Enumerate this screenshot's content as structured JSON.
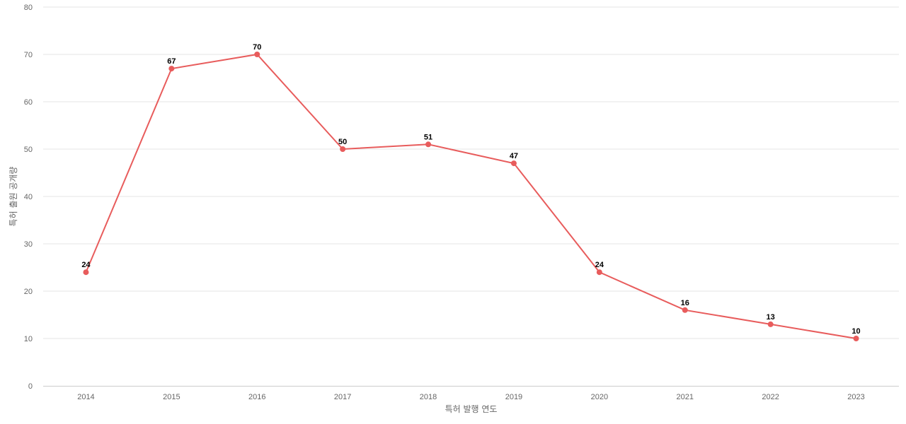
{
  "chart_data": {
    "type": "line",
    "title": "",
    "xlabel": "특허 발행 연도",
    "ylabel": "특허 출원 공개량",
    "categories": [
      "2014",
      "2015",
      "2016",
      "2017",
      "2018",
      "2019",
      "2020",
      "2021",
      "2022",
      "2023"
    ],
    "series": [
      {
        "values": [
          24,
          67,
          70,
          50,
          51,
          47,
          24,
          16,
          13,
          10
        ]
      }
    ],
    "ylim": [
      0,
      80
    ],
    "yticks": [
      0,
      10,
      20,
      30,
      40,
      50,
      60,
      70,
      80
    ],
    "grid": true,
    "legend": "none",
    "show_data_labels": true,
    "line_color": "#e85c5c"
  }
}
